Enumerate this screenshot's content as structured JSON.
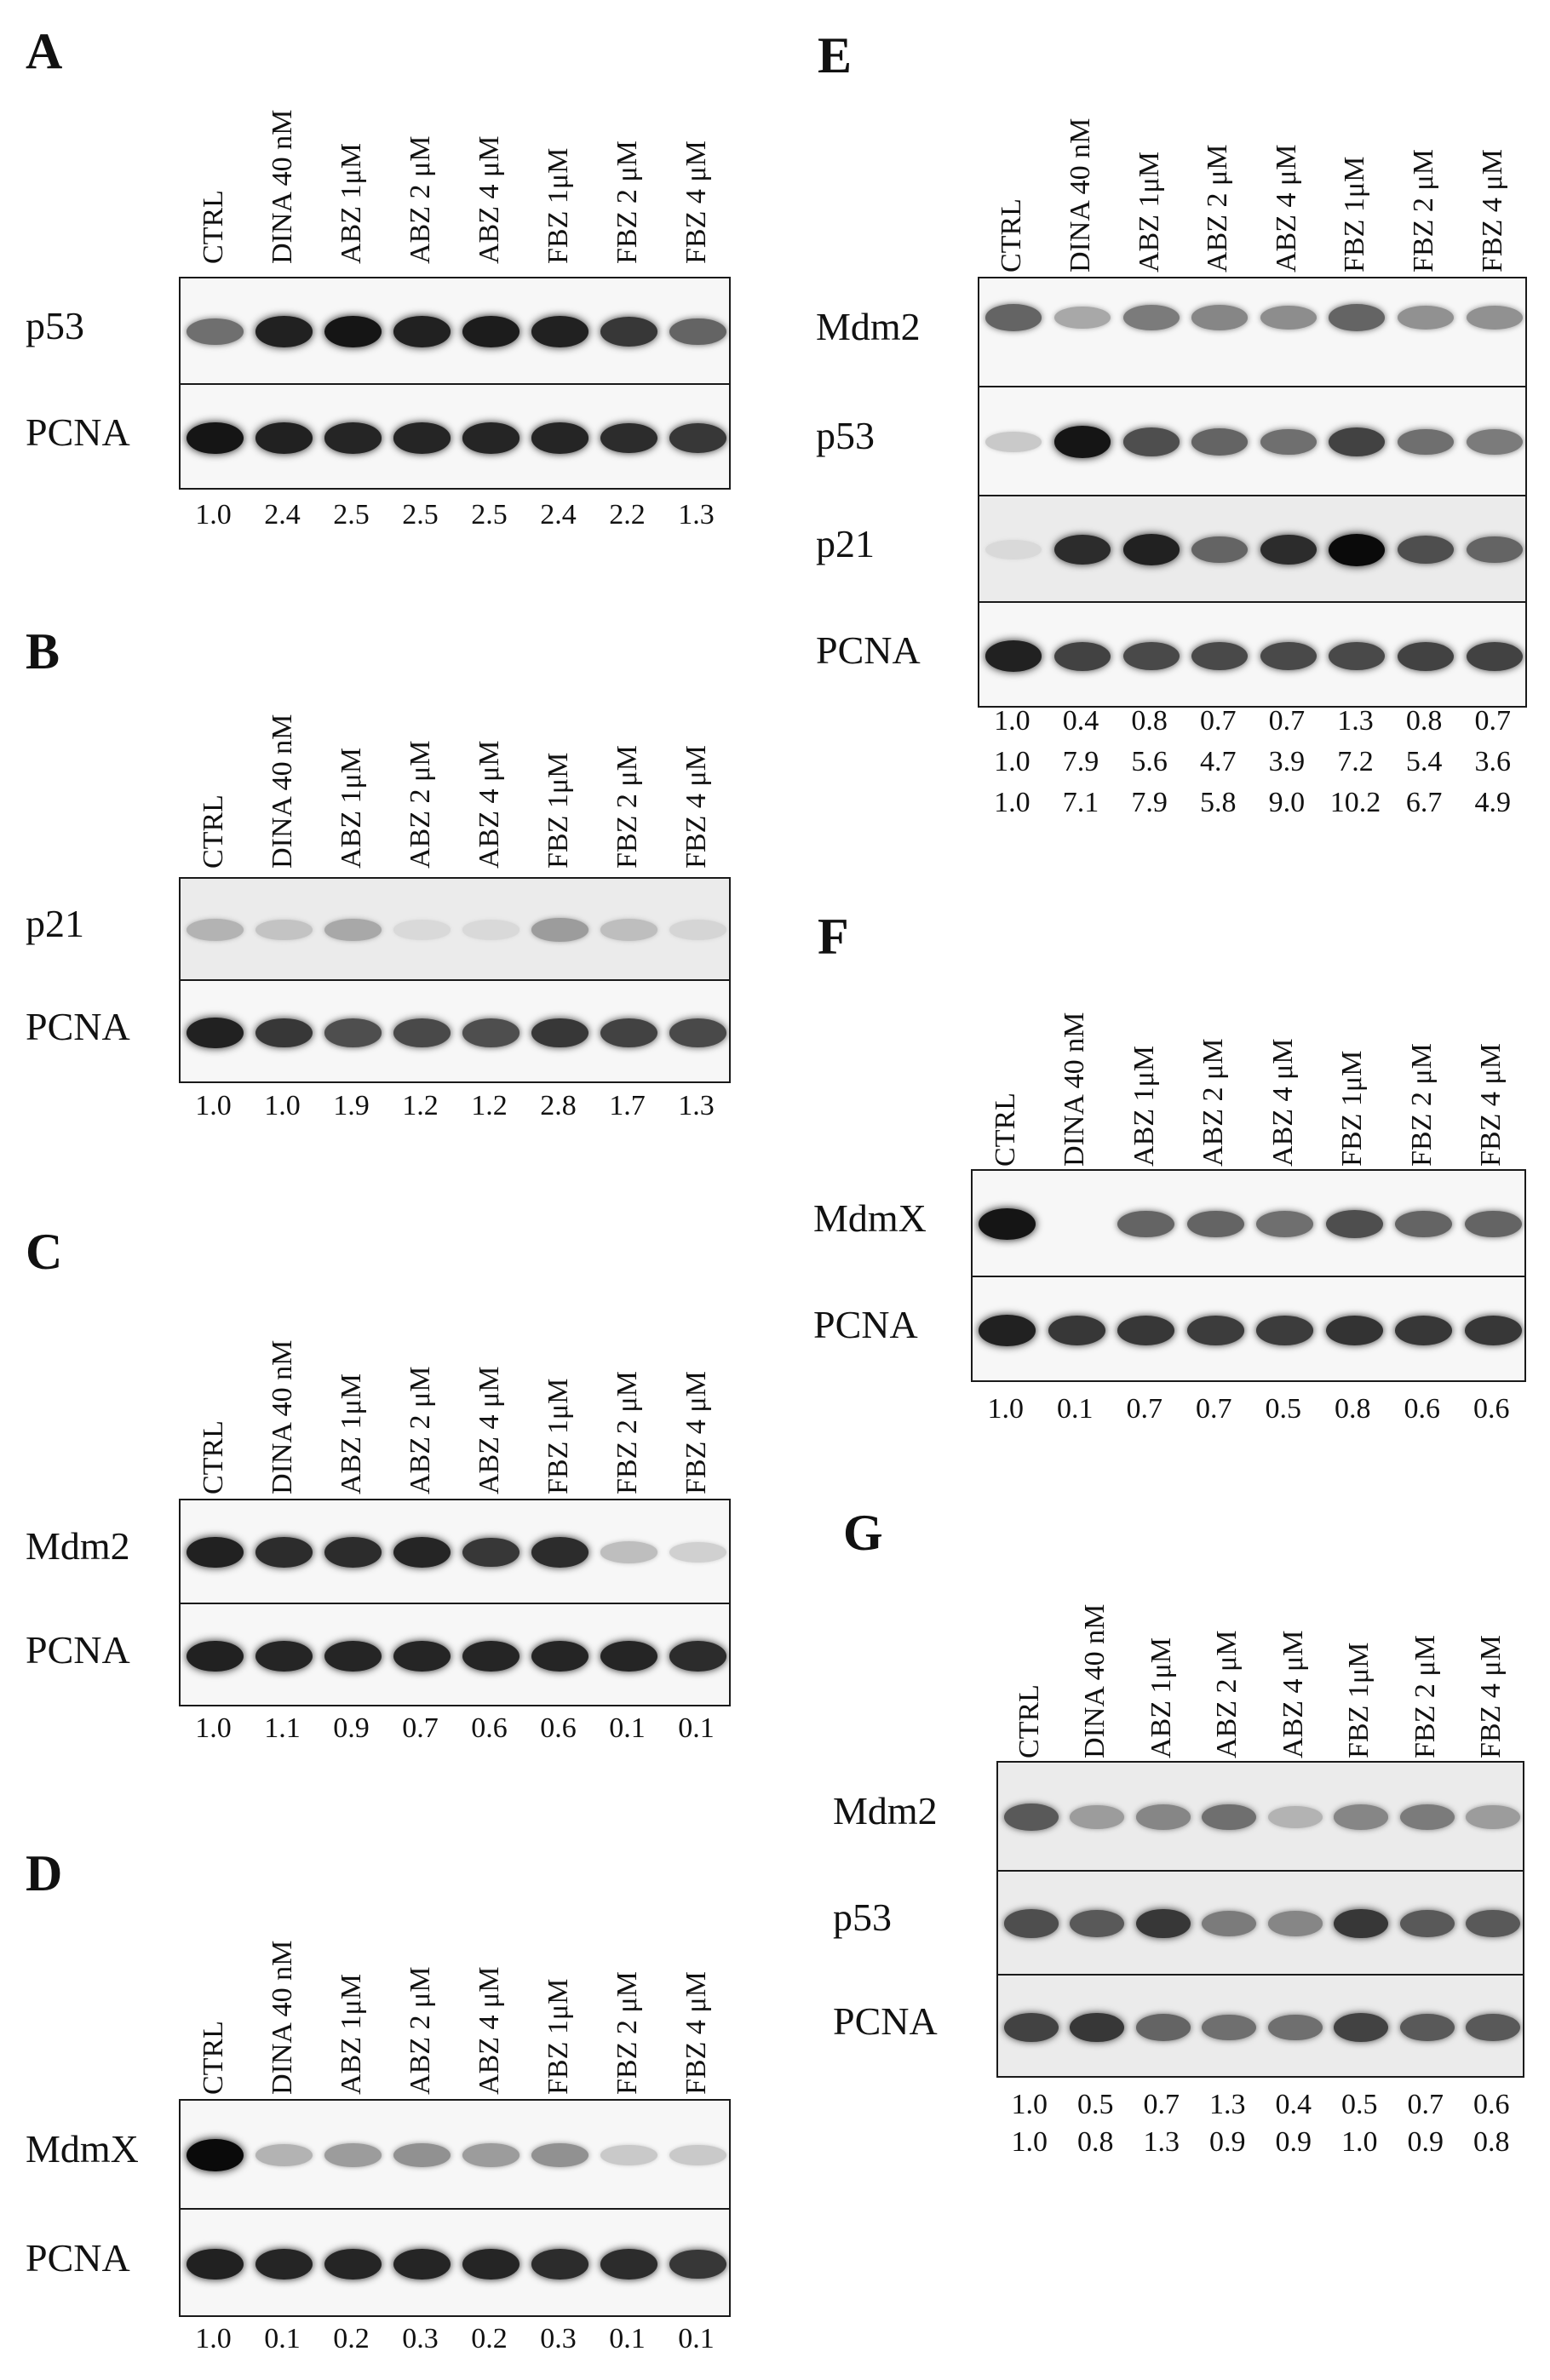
{
  "lanes": [
    "CTRL",
    "DINA 40 nM",
    "ABZ 1μM",
    "ABZ 2 μM",
    "ABZ 4 μM",
    "FBZ 1μM",
    "FBZ 2 μM",
    "FBZ 4 μM"
  ],
  "panels": [
    {
      "id": "A",
      "label": "A",
      "rows": [
        {
          "name": "p53",
          "intensity": [
            0.55,
            0.9,
            0.95,
            0.9,
            0.92,
            0.9,
            0.8,
            0.6
          ]
        },
        {
          "name": "PCNA",
          "intensity": [
            0.95,
            0.9,
            0.88,
            0.88,
            0.88,
            0.88,
            0.85,
            0.8
          ]
        }
      ],
      "quant": [
        [
          "1.0",
          "2.4",
          "2.5",
          "2.5",
          "2.5",
          "2.4",
          "2.2",
          "1.3"
        ]
      ]
    },
    {
      "id": "B",
      "label": "B",
      "rows": [
        {
          "name": "p21",
          "intensity": [
            0.25,
            0.18,
            0.3,
            0.08,
            0.08,
            0.35,
            0.2,
            0.1
          ]
        },
        {
          "name": "PCNA",
          "intensity": [
            0.9,
            0.8,
            0.7,
            0.72,
            0.7,
            0.8,
            0.75,
            0.72
          ]
        }
      ],
      "quant": [
        [
          "1.0",
          "1.0",
          "1.9",
          "1.2",
          "1.2",
          "2.8",
          "1.7",
          "1.3"
        ]
      ]
    },
    {
      "id": "C",
      "label": "C",
      "rows": [
        {
          "name": "Mdm2",
          "intensity": [
            0.9,
            0.85,
            0.85,
            0.88,
            0.8,
            0.85,
            0.2,
            0.12
          ]
        },
        {
          "name": "PCNA",
          "intensity": [
            0.9,
            0.88,
            0.88,
            0.88,
            0.88,
            0.88,
            0.88,
            0.85
          ]
        }
      ],
      "quant": [
        [
          "1.0",
          "1.1",
          "0.9",
          "0.7",
          "0.6",
          "0.6",
          "0.1",
          "0.1"
        ]
      ]
    },
    {
      "id": "D",
      "label": "D",
      "rows": [
        {
          "name": "MdmX",
          "intensity": [
            1.0,
            0.25,
            0.35,
            0.4,
            0.35,
            0.4,
            0.15,
            0.15
          ]
        },
        {
          "name": "PCNA",
          "intensity": [
            0.9,
            0.88,
            0.88,
            0.88,
            0.88,
            0.85,
            0.85,
            0.8
          ]
        }
      ],
      "quant": [
        [
          "1.0",
          "0.1",
          "0.2",
          "0.3",
          "0.2",
          "0.3",
          "0.1",
          "0.1"
        ]
      ]
    },
    {
      "id": "E",
      "label": "E",
      "rows": [
        {
          "name": "Mdm2",
          "intensity": [
            0.6,
            0.3,
            0.5,
            0.45,
            0.42,
            0.6,
            0.4,
            0.4
          ]
        },
        {
          "name": "p53",
          "intensity": [
            0.15,
            0.95,
            0.7,
            0.6,
            0.55,
            0.75,
            0.55,
            0.5
          ]
        },
        {
          "name": "p21",
          "intensity": [
            0.08,
            0.85,
            0.9,
            0.6,
            0.85,
            1.0,
            0.7,
            0.6
          ]
        },
        {
          "name": "PCNA",
          "intensity": [
            0.9,
            0.75,
            0.72,
            0.72,
            0.72,
            0.72,
            0.75,
            0.75
          ]
        }
      ],
      "quant": [
        [
          "1.0",
          "0.4",
          "0.8",
          "0.7",
          "0.7",
          "1.3",
          "0.8",
          "0.7"
        ],
        [
          "1.0",
          "7.9",
          "5.6",
          "4.7",
          "3.9",
          "7.2",
          "5.4",
          "3.6"
        ],
        [
          "1.0",
          "7.1",
          "7.9",
          "5.8",
          "9.0",
          "10.2",
          "6.7",
          "4.9"
        ]
      ]
    },
    {
      "id": "F",
      "label": "F",
      "rows": [
        {
          "name": "MdmX",
          "intensity": [
            0.95,
            0.0,
            0.6,
            0.6,
            0.55,
            0.7,
            0.6,
            0.6
          ]
        },
        {
          "name": "PCNA",
          "intensity": [
            0.9,
            0.8,
            0.8,
            0.78,
            0.78,
            0.82,
            0.8,
            0.8
          ]
        }
      ],
      "quant": [
        [
          "1.0",
          "0.1",
          "0.7",
          "0.7",
          "0.5",
          "0.8",
          "0.6",
          "0.6"
        ]
      ]
    },
    {
      "id": "G",
      "label": "G",
      "rows": [
        {
          "name": "Mdm2",
          "intensity": [
            0.65,
            0.35,
            0.45,
            0.55,
            0.25,
            0.45,
            0.5,
            0.35
          ]
        },
        {
          "name": "p53",
          "intensity": [
            0.7,
            0.65,
            0.8,
            0.5,
            0.45,
            0.8,
            0.65,
            0.65
          ]
        },
        {
          "name": "PCNA",
          "intensity": [
            0.75,
            0.8,
            0.6,
            0.55,
            0.55,
            0.75,
            0.65,
            0.65
          ]
        }
      ],
      "quant": [
        [
          "1.0",
          "0.5",
          "0.7",
          "1.3",
          "0.4",
          "0.5",
          "0.7",
          "0.6"
        ],
        [
          "1.0",
          "0.8",
          "1.3",
          "0.9",
          "0.9",
          "1.0",
          "0.9",
          "0.8"
        ]
      ]
    }
  ]
}
